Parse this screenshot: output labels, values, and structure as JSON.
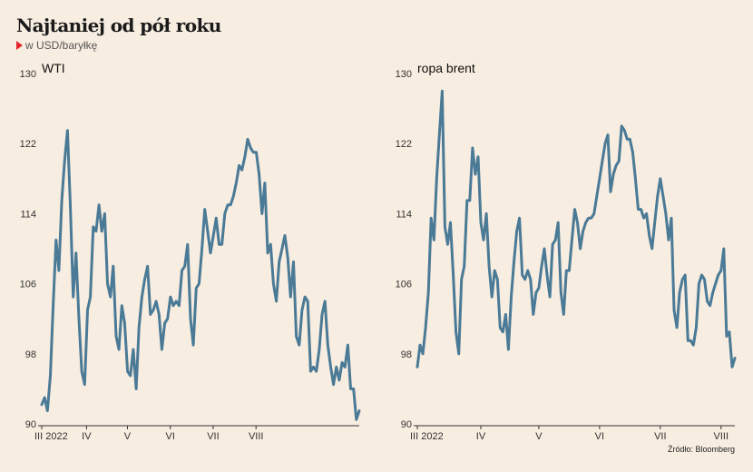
{
  "title": "Najtaniej od pół roku",
  "subtitle": "w USD/baryłkę",
  "source": "Źródło: Bloomberg",
  "colors": {
    "line": "#4a7a96",
    "background": "#f8ede1",
    "marker": "#e3252b",
    "grid": "#cfc5ba"
  },
  "chart_data": [
    {
      "type": "line",
      "title": "WTI",
      "ylim": [
        90,
        130
      ],
      "yticks": [
        90,
        98,
        106,
        114,
        122,
        130
      ],
      "x_range": [
        0,
        163
      ],
      "xticks": [
        {
          "pos": 0,
          "label": "III 2022"
        },
        {
          "pos": 23,
          "label": "IV"
        },
        {
          "pos": 44,
          "label": "V"
        },
        {
          "pos": 66,
          "label": "VI"
        },
        {
          "pos": 88,
          "label": "VII"
        },
        {
          "pos": 110,
          "label": "VIII"
        }
      ],
      "series": [
        {
          "values": [
            92.2,
            93.0,
            91.5,
            95.5,
            103.5,
            111.0,
            107.5,
            115.5,
            120.0,
            123.5,
            115.0,
            104.5,
            109.5,
            102.0,
            96.0,
            94.5,
            103.0,
            104.5,
            112.5,
            112.0,
            115.0,
            112.0,
            114.0,
            106.0,
            104.5,
            108.0,
            100.0,
            98.5,
            103.5,
            101.5,
            96.0,
            95.5,
            98.5,
            94.0,
            101.0,
            104.5,
            106.5,
            108.0,
            102.5,
            103.0,
            104.0,
            102.5,
            98.5,
            101.5,
            102.0,
            104.5,
            103.5,
            104.0,
            103.5,
            107.5,
            108.0,
            110.5,
            102.0,
            99.0,
            105.5,
            106.0,
            110.0,
            114.5,
            112.0,
            109.5,
            111.5,
            113.5,
            110.5,
            110.5,
            114.0,
            115.0,
            115.0,
            116.0,
            117.5,
            119.5,
            119.0,
            120.5,
            122.5,
            121.5,
            121.0,
            121.0,
            118.5,
            114.0,
            117.5,
            109.5,
            110.5,
            106.0,
            104.0,
            108.5,
            110.0,
            111.5,
            109.0,
            104.5,
            108.5,
            100.0,
            99.0,
            103.0,
            104.5,
            104.0,
            96.0,
            96.5,
            96.0,
            98.5,
            102.5,
            104.0,
            99.0,
            96.5,
            94.5,
            96.5,
            95.0,
            97.0,
            96.5,
            99.0,
            94.0,
            94.0,
            90.5,
            91.5
          ]
        }
      ]
    },
    {
      "type": "line",
      "title": "ropa brent",
      "ylim": [
        90,
        130
      ],
      "yticks": [
        90,
        98,
        106,
        114,
        122,
        130
      ],
      "x_range": [
        0,
        115
      ],
      "xticks": [
        {
          "pos": 0,
          "label": "III 2022"
        },
        {
          "pos": 23,
          "label": "IV"
        },
        {
          "pos": 44,
          "label": "V"
        },
        {
          "pos": 66,
          "label": "VI"
        },
        {
          "pos": 88,
          "label": "VII"
        },
        {
          "pos": 110,
          "label": "VIII"
        }
      ],
      "series": [
        {
          "values": [
            96.5,
            99.0,
            98.0,
            101.0,
            105.0,
            113.5,
            111.0,
            118.0,
            123.0,
            128.0,
            112.5,
            110.5,
            113.0,
            107.0,
            100.5,
            98.0,
            106.5,
            108.0,
            115.5,
            115.5,
            121.5,
            118.5,
            120.5,
            113.0,
            111.0,
            114.0,
            108.0,
            104.5,
            107.5,
            106.5,
            101.0,
            100.5,
            102.5,
            98.5,
            104.5,
            108.5,
            112.0,
            113.5,
            107.0,
            106.5,
            107.5,
            106.5,
            102.5,
            105.0,
            105.5,
            108.0,
            110.0,
            107.0,
            104.5,
            110.5,
            111.0,
            113.0,
            105.0,
            102.5,
            107.5,
            107.5,
            111.0,
            114.5,
            113.0,
            110.0,
            112.0,
            113.0,
            113.5,
            113.5,
            114.0,
            116.0,
            118.0,
            120.0,
            122.0,
            123.0,
            116.5,
            118.5,
            119.5,
            120.0,
            124.0,
            123.5,
            122.5,
            122.5,
            121.0,
            118.0,
            114.5,
            114.5,
            113.5,
            114.0,
            111.5,
            110.0,
            113.0,
            116.0,
            118.0,
            116.0,
            114.0,
            111.0,
            113.5,
            103.0,
            101.0,
            105.0,
            106.5,
            107.0,
            99.5,
            99.5,
            99.0,
            101.0,
            106.0,
            107.0,
            106.5,
            104.0,
            103.5,
            105.0,
            106.0,
            107.0,
            107.5,
            110.0,
            100.0,
            100.5,
            96.5,
            97.5
          ]
        }
      ]
    }
  ]
}
